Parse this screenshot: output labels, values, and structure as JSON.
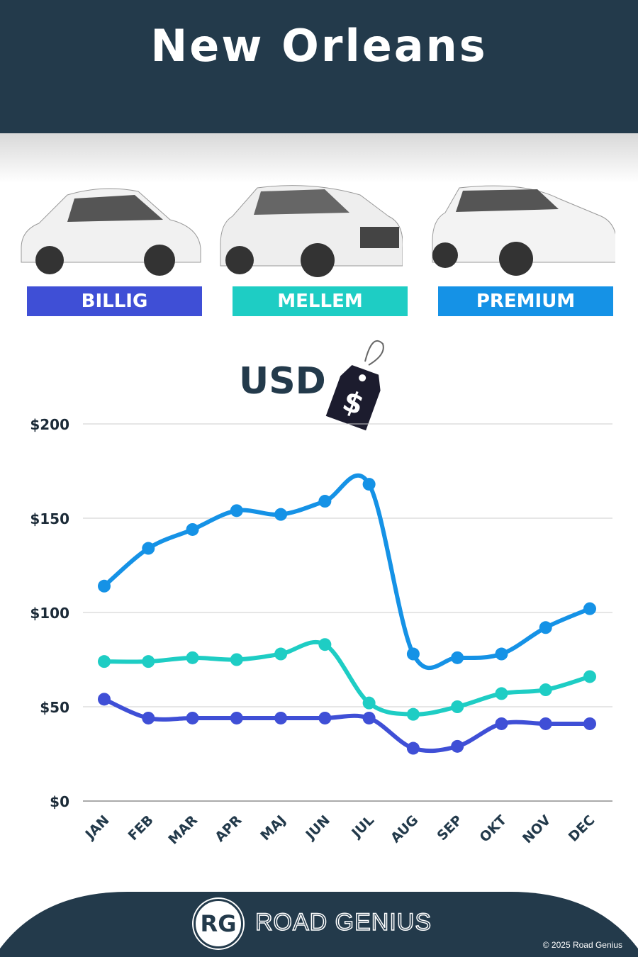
{
  "title": "New Orleans",
  "categories_labels": {
    "billig": "BILLIG",
    "mellem": "MELLEM",
    "premium": "PREMIUM"
  },
  "currency": "USD",
  "tag_symbol": "$",
  "colors": {
    "billig": "#3f4fd6",
    "mellem": "#1ecdc4",
    "premium": "#1592e6",
    "dark": "#233a4b"
  },
  "chart_data": {
    "type": "line",
    "categories": [
      "JAN",
      "FEB",
      "MAR",
      "APR",
      "MAJ",
      "JUN",
      "JUL",
      "AUG",
      "SEP",
      "OKT",
      "NOV",
      "DEC"
    ],
    "yticks": [
      "$0",
      "$50",
      "$100",
      "$150",
      "$200"
    ],
    "ylim": [
      0,
      200
    ],
    "grid": true,
    "series": [
      {
        "name": "PREMIUM",
        "color": "#1592e6",
        "values": [
          114,
          134,
          144,
          154,
          152,
          159,
          168,
          78,
          76,
          78,
          92,
          102
        ]
      },
      {
        "name": "MELLEM",
        "color": "#1ecdc4",
        "values": [
          74,
          74,
          76,
          75,
          78,
          83,
          52,
          46,
          50,
          57,
          59,
          66
        ]
      },
      {
        "name": "BILLIG",
        "color": "#3f4fd6",
        "values": [
          54,
          44,
          44,
          44,
          44,
          44,
          44,
          28,
          29,
          41,
          41,
          41
        ]
      }
    ]
  },
  "footer": {
    "logo": "RG",
    "brand": "ROAD GENIUS",
    "copyright": "© 2025 Road Genius"
  }
}
